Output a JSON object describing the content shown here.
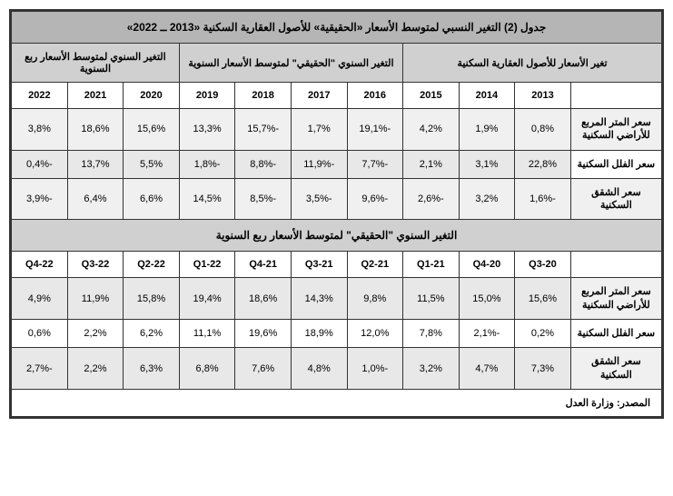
{
  "title": "جدول (2) التغير النسبي لمتوسط الأسعار «الحقيقية» للأصول العقارية السكنية «2013 ــ 2022»",
  "group_headers": {
    "g1": "تغير الأسعار للأصول العقارية السكنية",
    "g2": "التغير السنوي \"الحقيقي\" لمتوسط الأسعار السنوية",
    "g3": "التغير السنوي لمتوسط الأسعار ربع السنوية"
  },
  "years": [
    "2013",
    "2014",
    "2015",
    "2016",
    "2017",
    "2018",
    "2019",
    "2020",
    "2021",
    "2022"
  ],
  "rows_a": [
    {
      "label": "سعر المتر المربع للأراضي السكنية",
      "vals": [
        "0,8%",
        "1,9%",
        "4,2%",
        "-19,1%",
        "1,7%",
        "-15,7%",
        "13,3%",
        "15,6%",
        "18,6%",
        "3,8%"
      ]
    },
    {
      "label": "سعر الفلل السكنية",
      "vals": [
        "22,8%",
        "3,1%",
        "2,1%",
        "-7,7%",
        "-11,9%",
        "-8,8%",
        "-1,8%",
        "5,5%",
        "13,7%",
        "-0,4%"
      ]
    },
    {
      "label": "سعر الشقق السكنية",
      "vals": [
        "-1,6%",
        "3,2%",
        "-2,6%",
        "-9,6%",
        "-3,5%",
        "-8,5%",
        "14,5%",
        "6,6%",
        "6,4%",
        "-3,9%"
      ]
    }
  ],
  "section2_title": "التغير السنوي \"الحقيقي\" لمتوسط الأسعار ربع السنوية",
  "quarters": [
    "20-Q3",
    "20-Q4",
    "21-Q1",
    "21-Q2",
    "21-Q3",
    "21-Q4",
    "22-Q1",
    "22-Q2",
    "22-Q3",
    "22-Q4"
  ],
  "rows_b": [
    {
      "label": "سعر المتر المربع للأراضي السكنية",
      "vals": [
        "15,6%",
        "15,0%",
        "11,5%",
        "9,8%",
        "14,3%",
        "18,6%",
        "19,4%",
        "15,8%",
        "11,9%",
        "4,9%"
      ]
    },
    {
      "label": "سعر الفلل السكنية",
      "vals": [
        "0,2%",
        "-2,1%",
        "7,8%",
        "12,0%",
        "18,9%",
        "19,6%",
        "11,1%",
        "6,2%",
        "2,2%",
        "0,6%"
      ]
    },
    {
      "label": "سعر الشقق السكنية",
      "vals": [
        "7,3%",
        "4,7%",
        "3,2%",
        "-1,0%",
        "4,8%",
        "7,6%",
        "6,8%",
        "6,3%",
        "2,2%",
        "-2,7%"
      ]
    }
  ],
  "source": "المصدر: وزارة العدل",
  "colors": {
    "title_bg": "#b5b5b5",
    "header_bg": "#d0d0d0",
    "row_bg_1": "#e8e8e8",
    "row_bg_2": "#ffffff",
    "border": "#333333"
  }
}
